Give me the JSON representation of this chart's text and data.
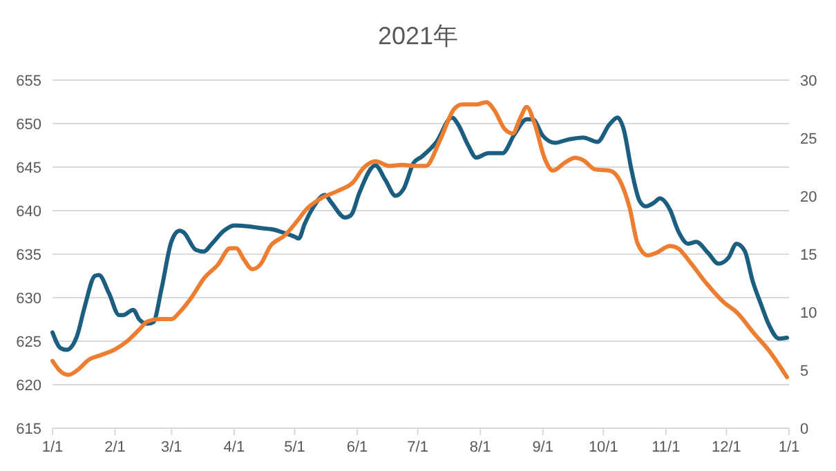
{
  "chart_data": {
    "type": "line",
    "title": "2021年",
    "xlim": [
      "2021-01-01",
      "2022-01-01"
    ],
    "xticks": [
      {
        "value": "2021-01-01",
        "label": "1/1"
      },
      {
        "value": "2021-02-01",
        "label": "2/1"
      },
      {
        "value": "2021-03-01",
        "label": "3/1"
      },
      {
        "value": "2021-04-01",
        "label": "4/1"
      },
      {
        "value": "2021-05-01",
        "label": "5/1"
      },
      {
        "value": "2021-06-01",
        "label": "6/1"
      },
      {
        "value": "2021-07-01",
        "label": "7/1"
      },
      {
        "value": "2021-08-01",
        "label": "8/1"
      },
      {
        "value": "2021-09-01",
        "label": "9/1"
      },
      {
        "value": "2021-10-01",
        "label": "10/1"
      },
      {
        "value": "2021-11-01",
        "label": "11/1"
      },
      {
        "value": "2021-12-01",
        "label": "12/1"
      },
      {
        "value": "2022-01-01",
        "label": "1/1"
      }
    ],
    "ylim": [
      615,
      655
    ],
    "yticks": [
      615,
      620,
      625,
      630,
      635,
      640,
      645,
      650,
      655
    ],
    "y2lim": [
      0,
      30
    ],
    "y2ticks": [
      0,
      5,
      10,
      15,
      20,
      25,
      30
    ],
    "grid": "y",
    "marker": "none",
    "line_style": "solid",
    "series": [
      {
        "color": "#1b5e80",
        "axis": "y",
        "x": [
          "2021-01-01",
          "2021-01-05",
          "2021-01-08",
          "2021-01-13",
          "2021-01-17",
          "2021-01-22",
          "2021-01-24",
          "2021-01-29",
          "2021-02-03",
          "2021-02-05",
          "2021-02-10",
          "2021-02-13",
          "2021-02-17",
          "2021-02-20",
          "2021-02-24",
          "2021-03-01",
          "2021-03-05",
          "2021-03-07",
          "2021-03-13",
          "2021-03-17",
          "2021-03-21",
          "2021-03-27",
          "2021-04-01",
          "2021-04-08",
          "2021-04-14",
          "2021-04-21",
          "2021-04-25",
          "2021-05-01",
          "2021-05-03",
          "2021-05-06",
          "2021-05-10",
          "2021-05-16",
          "2021-05-19",
          "2021-05-26",
          "2021-05-29",
          "2021-06-02",
          "2021-06-10",
          "2021-06-15",
          "2021-06-20",
          "2021-06-24",
          "2021-06-29",
          "2021-07-03",
          "2021-07-10",
          "2021-07-18",
          "2021-07-21",
          "2021-07-26",
          "2021-07-30",
          "2021-08-05",
          "2021-08-12",
          "2021-08-18",
          "2021-08-24",
          "2021-08-27",
          "2021-09-01",
          "2021-09-07",
          "2021-09-14",
          "2021-09-21",
          "2021-09-28",
          "2021-10-04",
          "2021-10-08",
          "2021-10-11",
          "2021-10-15",
          "2021-10-19",
          "2021-10-22",
          "2021-10-26",
          "2021-10-29",
          "2021-11-03",
          "2021-11-07",
          "2021-11-12",
          "2021-11-16",
          "2021-11-22",
          "2021-11-27",
          "2021-12-02",
          "2021-12-06",
          "2021-12-10",
          "2021-12-14",
          "2021-12-18",
          "2021-12-22",
          "2021-12-27",
          "2021-12-31"
        ],
        "values": [
          626,
          624.2,
          624,
          625.5,
          629,
          632.5,
          632.6,
          630.5,
          628,
          628,
          628.6,
          627.5,
          627,
          627.2,
          631,
          636.5,
          637.7,
          637.5,
          635.5,
          635.3,
          636.2,
          637.7,
          638.3,
          638.2,
          638,
          637.8,
          637.5,
          637,
          636.8,
          638.5,
          640.3,
          641.8,
          641,
          639.2,
          639.5,
          642,
          645.2,
          643.5,
          641.7,
          642.5,
          645.5,
          646.2,
          647.8,
          650.7,
          649.9,
          647.5,
          646.1,
          646.6,
          646.6,
          648.8,
          650.5,
          650.5,
          648.6,
          647.8,
          648.2,
          648.4,
          647.9,
          649.9,
          650.7,
          649.4,
          644.6,
          641.1,
          640.5,
          640.9,
          641.4,
          640.1,
          637.7,
          636.2,
          636.4,
          635.1,
          633.9,
          634.6,
          636.2,
          635.4,
          631.9,
          629.3,
          626.9,
          625.3,
          625.4
        ]
      },
      {
        "color": "#ed7d31",
        "axis": "y2",
        "x": [
          "2021-01-01",
          "2021-01-05",
          "2021-01-09",
          "2021-01-14",
          "2021-01-19",
          "2021-01-25",
          "2021-02-01",
          "2021-02-07",
          "2021-02-13",
          "2021-02-17",
          "2021-02-23",
          "2021-03-01",
          "2021-03-05",
          "2021-03-11",
          "2021-03-17",
          "2021-03-24",
          "2021-03-30",
          "2021-04-02",
          "2021-04-06",
          "2021-04-10",
          "2021-04-14",
          "2021-04-19",
          "2021-04-26",
          "2021-05-02",
          "2021-05-07",
          "2021-05-14",
          "2021-05-23",
          "2021-05-30",
          "2021-06-04",
          "2021-06-10",
          "2021-06-17",
          "2021-06-23",
          "2021-06-30",
          "2021-07-05",
          "2021-07-12",
          "2021-07-19",
          "2021-07-23",
          "2021-07-30",
          "2021-08-04",
          "2021-08-08",
          "2021-08-13",
          "2021-08-17",
          "2021-08-21",
          "2021-08-24",
          "2021-08-28",
          "2021-09-02",
          "2021-09-06",
          "2021-09-12",
          "2021-09-17",
          "2021-09-21",
          "2021-09-27",
          "2021-10-04",
          "2021-10-09",
          "2021-10-14",
          "2021-10-18",
          "2021-10-23",
          "2021-10-27",
          "2021-11-03",
          "2021-11-07",
          "2021-11-13",
          "2021-11-21",
          "2021-11-30",
          "2021-12-06",
          "2021-12-15",
          "2021-12-22",
          "2021-12-31"
        ],
        "values": [
          5.8,
          4.9,
          4.6,
          5.1,
          5.9,
          6.3,
          6.8,
          7.5,
          8.5,
          9.2,
          9.4,
          9.4,
          10,
          11.3,
          12.9,
          14.1,
          15.5,
          15.5,
          14.5,
          13.7,
          14.1,
          15.7,
          16.6,
          17.8,
          18.9,
          19.8,
          20.5,
          21.2,
          22.4,
          23,
          22.6,
          22.7,
          22.6,
          22.6,
          24.8,
          27.5,
          27.9,
          27.9,
          28.1,
          27.4,
          25.8,
          25.4,
          26.8,
          27.7,
          26.2,
          23.2,
          22.2,
          22.9,
          23.3,
          23.1,
          22.3,
          22.2,
          21.4,
          19,
          15.9,
          14.9,
          15.1,
          15.7,
          15.5,
          14.3,
          12.5,
          10.8,
          10,
          8.1,
          6.7,
          4.4
        ]
      }
    ]
  }
}
